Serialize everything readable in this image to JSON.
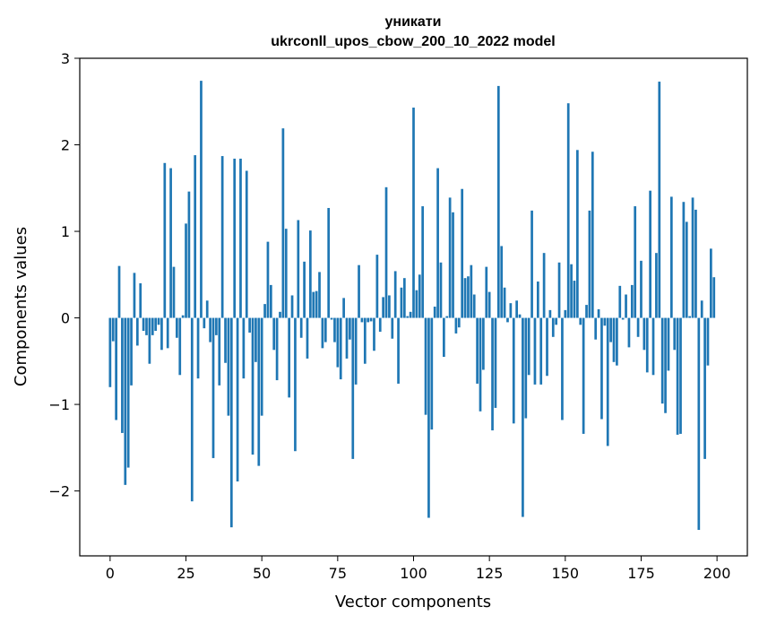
{
  "chart_data": {
    "type": "bar",
    "title": "уникати",
    "subtitle": "ukrconll_upos_cbow_200_10_2022 model",
    "xlabel": "Vector components",
    "ylabel": "Components values",
    "xlim": [
      -10,
      210
    ],
    "ylim": [
      -2.75,
      3.0
    ],
    "xticks": [
      0,
      25,
      50,
      75,
      100,
      125,
      150,
      175,
      200
    ],
    "yticks": [
      -2,
      -1,
      0,
      1,
      2,
      3
    ],
    "xtick_labels": [
      "0",
      "25",
      "50",
      "75",
      "100",
      "125",
      "150",
      "175",
      "200"
    ],
    "ytick_labels": [
      "−2",
      "−1",
      "0",
      "1",
      "2",
      "3"
    ],
    "grid": false,
    "bar_color": "#1f77b4",
    "values": [
      -0.8,
      -0.27,
      -1.18,
      0.6,
      -1.33,
      -1.93,
      -1.73,
      -0.78,
      0.52,
      -0.32,
      0.4,
      -0.15,
      -0.2,
      -0.53,
      -0.2,
      -0.15,
      -0.08,
      -0.37,
      1.79,
      -0.35,
      1.73,
      0.59,
      -0.23,
      -0.66,
      0.03,
      1.09,
      1.46,
      -2.12,
      1.88,
      -0.7,
      2.74,
      -0.12,
      0.2,
      -0.28,
      -1.62,
      -0.2,
      -0.78,
      1.87,
      -0.52,
      -1.13,
      -2.42,
      1.84,
      -1.89,
      1.84,
      -0.7,
      1.7,
      -0.17,
      -1.58,
      -0.51,
      -1.71,
      -1.13,
      0.16,
      0.88,
      0.38,
      -0.37,
      -0.72,
      0.07,
      2.19,
      1.03,
      -0.92,
      0.26,
      -1.54,
      1.13,
      -0.23,
      0.65,
      -0.47,
      1.01,
      0.3,
      0.31,
      0.53,
      -0.35,
      -0.28,
      1.27,
      -0.02,
      -0.28,
      -0.57,
      -0.71,
      0.23,
      -0.47,
      -0.25,
      -1.63,
      -0.77,
      0.61,
      -0.05,
      -0.53,
      -0.05,
      -0.04,
      -0.38,
      0.73,
      -0.16,
      0.24,
      1.51,
      0.26,
      -0.24,
      0.54,
      -0.76,
      0.35,
      0.46,
      0.02,
      0.07,
      2.43,
      0.32,
      0.5,
      1.29,
      -1.12,
      -2.31,
      -1.29,
      0.13,
      1.73,
      0.64,
      -0.45,
      0.02,
      1.39,
      1.22,
      -0.18,
      -0.11,
      1.49,
      0.46,
      0.48,
      0.61,
      0.27,
      -0.76,
      -1.08,
      -0.6,
      0.59,
      0.3,
      -1.3,
      -1.04,
      2.68,
      0.83,
      0.35,
      -0.05,
      0.17,
      -1.22,
      0.2,
      0.04,
      -2.3,
      -1.16,
      -0.66,
      1.24,
      -0.77,
      0.42,
      -0.77,
      0.75,
      -0.67,
      0.09,
      -0.22,
      -0.08,
      0.64,
      -1.18,
      0.09,
      2.48,
      0.62,
      0.43,
      1.94,
      -0.08,
      -1.34,
      0.15,
      1.24,
      1.92,
      -0.25,
      0.1,
      -1.17,
      -0.09,
      -1.48,
      -0.28,
      -0.51,
      -0.55,
      0.37,
      -0.02,
      0.27,
      -0.34,
      0.38,
      1.29,
      -0.22,
      0.66,
      -0.37,
      -0.63,
      1.47,
      -0.66,
      0.75,
      2.73,
      -0.99,
      -1.1,
      -0.61,
      1.4,
      -0.37,
      -1.35,
      -1.34,
      1.34,
      1.11,
      0.02,
      1.39,
      1.25,
      -2.45,
      0.2,
      -1.63,
      -0.55,
      0.8,
      0.47
    ]
  }
}
